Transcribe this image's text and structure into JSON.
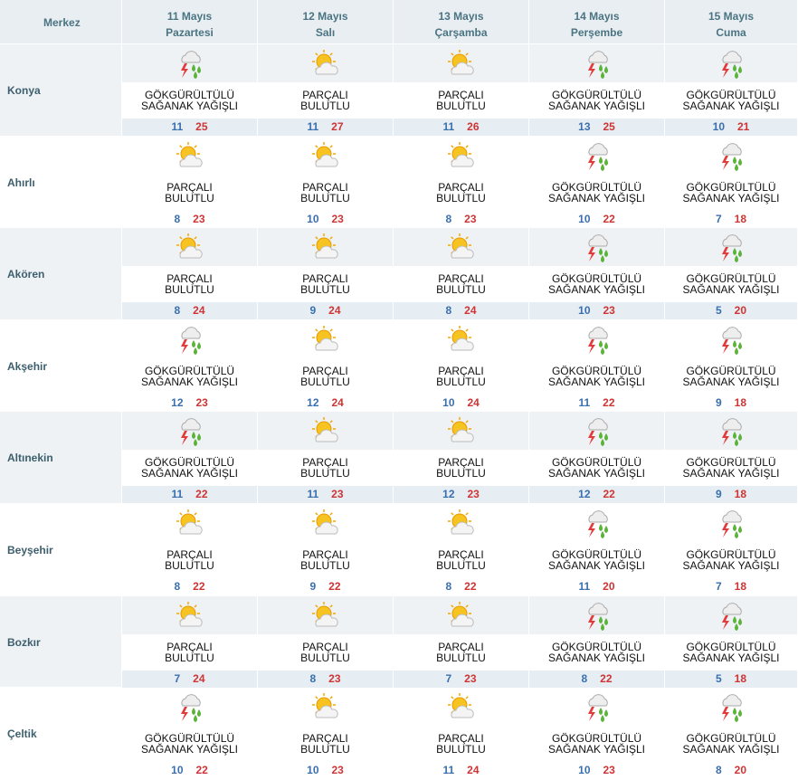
{
  "table": {
    "header": "Merkez",
    "days": [
      {
        "date": "11 Mayıs",
        "weekday": "Pazartesi"
      },
      {
        "date": "12 Mayıs",
        "weekday": "Salı"
      },
      {
        "date": "13 Mayıs",
        "weekday": "Çarşamba"
      },
      {
        "date": "14 Mayıs",
        "weekday": "Perşembe"
      },
      {
        "date": "15 Mayıs",
        "weekday": "Cuma"
      }
    ],
    "rows": [
      {
        "city": "Konya",
        "cells": [
          {
            "condition": "GÖKGÜRÜLTÜLÜ SAĞANAK YAĞIŞLI",
            "min": 11,
            "max": 25
          },
          {
            "condition": "PARÇALI BULUTLU",
            "min": 11,
            "max": 27
          },
          {
            "condition": "PARÇALI BULUTLU",
            "min": 11,
            "max": 26
          },
          {
            "condition": "GÖKGÜRÜLTÜLÜ SAĞANAK YAĞIŞLI",
            "min": 13,
            "max": 25
          },
          {
            "condition": "GÖKGÜRÜLTÜLÜ SAĞANAK YAĞIŞLI",
            "min": 10,
            "max": 21
          }
        ]
      },
      {
        "city": "Ahırlı",
        "cells": [
          {
            "condition": "PARÇALI BULUTLU",
            "min": 8,
            "max": 23
          },
          {
            "condition": "PARÇALI BULUTLU",
            "min": 10,
            "max": 23
          },
          {
            "condition": "PARÇALI BULUTLU",
            "min": 8,
            "max": 23
          },
          {
            "condition": "GÖKGÜRÜLTÜLÜ SAĞANAK YAĞIŞLI",
            "min": 10,
            "max": 22
          },
          {
            "condition": "GÖKGÜRÜLTÜLÜ SAĞANAK YAĞIŞLI",
            "min": 7,
            "max": 18
          }
        ]
      },
      {
        "city": "Akören",
        "cells": [
          {
            "condition": "PARÇALI BULUTLU",
            "min": 8,
            "max": 24
          },
          {
            "condition": "PARÇALI BULUTLU",
            "min": 9,
            "max": 24
          },
          {
            "condition": "PARÇALI BULUTLU",
            "min": 8,
            "max": 24
          },
          {
            "condition": "GÖKGÜRÜLTÜLÜ SAĞANAK YAĞIŞLI",
            "min": 10,
            "max": 23
          },
          {
            "condition": "GÖKGÜRÜLTÜLÜ SAĞANAK YAĞIŞLI",
            "min": 5,
            "max": 20
          }
        ]
      },
      {
        "city": "Akşehir",
        "cells": [
          {
            "condition": "GÖKGÜRÜLTÜLÜ SAĞANAK YAĞIŞLI",
            "min": 12,
            "max": 23
          },
          {
            "condition": "PARÇALI BULUTLU",
            "min": 12,
            "max": 24
          },
          {
            "condition": "PARÇALI BULUTLU",
            "min": 10,
            "max": 24
          },
          {
            "condition": "GÖKGÜRÜLTÜLÜ SAĞANAK YAĞIŞLI",
            "min": 11,
            "max": 22
          },
          {
            "condition": "GÖKGÜRÜLTÜLÜ SAĞANAK YAĞIŞLI",
            "min": 9,
            "max": 18
          }
        ]
      },
      {
        "city": "Altınekin",
        "cells": [
          {
            "condition": "GÖKGÜRÜLTÜLÜ SAĞANAK YAĞIŞLI",
            "min": 11,
            "max": 22
          },
          {
            "condition": "PARÇALI BULUTLU",
            "min": 11,
            "max": 23
          },
          {
            "condition": "PARÇALI BULUTLU",
            "min": 12,
            "max": 23
          },
          {
            "condition": "GÖKGÜRÜLTÜLÜ SAĞANAK YAĞIŞLI",
            "min": 12,
            "max": 22
          },
          {
            "condition": "GÖKGÜRÜLTÜLÜ SAĞANAK YAĞIŞLI",
            "min": 9,
            "max": 18
          }
        ]
      },
      {
        "city": "Beyşehir",
        "cells": [
          {
            "condition": "PARÇALI BULUTLU",
            "min": 8,
            "max": 22
          },
          {
            "condition": "PARÇALI BULUTLU",
            "min": 9,
            "max": 22
          },
          {
            "condition": "PARÇALI BULUTLU",
            "min": 8,
            "max": 22
          },
          {
            "condition": "GÖKGÜRÜLTÜLÜ SAĞANAK YAĞIŞLI",
            "min": 11,
            "max": 20
          },
          {
            "condition": "GÖKGÜRÜLTÜLÜ SAĞANAK YAĞIŞLI",
            "min": 7,
            "max": 18
          }
        ]
      },
      {
        "city": "Bozkır",
        "cells": [
          {
            "condition": "PARÇALI BULUTLU",
            "min": 7,
            "max": 24
          },
          {
            "condition": "PARÇALI BULUTLU",
            "min": 8,
            "max": 23
          },
          {
            "condition": "PARÇALI BULUTLU",
            "min": 7,
            "max": 23
          },
          {
            "condition": "GÖKGÜRÜLTÜLÜ SAĞANAK YAĞIŞLI",
            "min": 8,
            "max": 22
          },
          {
            "condition": "GÖKGÜRÜLTÜLÜ SAĞANAK YAĞIŞLI",
            "min": 5,
            "max": 18
          }
        ]
      },
      {
        "city": "Çeltik",
        "cells": [
          {
            "condition": "GÖKGÜRÜLTÜLÜ SAĞANAK YAĞIŞLI",
            "min": 10,
            "max": 22
          },
          {
            "condition": "PARÇALI BULUTLU",
            "min": 10,
            "max": 23
          },
          {
            "condition": "PARÇALI BULUTLU",
            "min": 11,
            "max": 24
          },
          {
            "condition": "GÖKGÜRÜLTÜLÜ SAĞANAK YAĞIŞLI",
            "min": 10,
            "max": 23
          },
          {
            "condition": "GÖKGÜRÜLTÜLÜ SAĞANAK YAĞIŞLI",
            "min": 8,
            "max": 20
          }
        ]
      }
    ]
  }
}
